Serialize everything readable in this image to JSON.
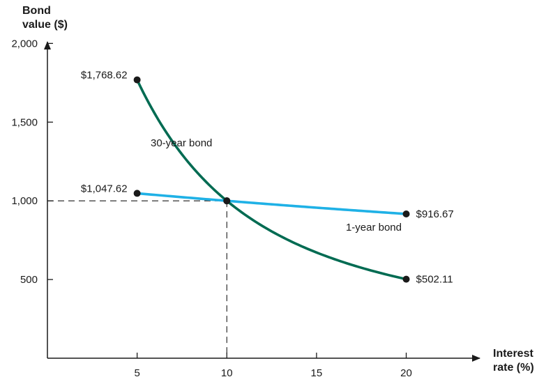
{
  "colors": {
    "axis": "#1a1a1a",
    "series_30yr": "#006b52",
    "series_1yr": "#1fb1e6",
    "point": "#1a1a1a"
  },
  "chart_data": {
    "type": "line",
    "ylabel_line1": "Bond",
    "ylabel_line2": "value ($)",
    "xlabel_line1": "Interest",
    "xlabel_line2": "rate (%)",
    "xlim": [
      0,
      24.1
    ],
    "ylim": [
      0,
      2400
    ],
    "x_ticks": [
      5,
      10,
      15,
      20
    ],
    "x_tick_labels": [
      "5",
      "10",
      "15",
      "20"
    ],
    "y_ticks": [
      500,
      1000,
      1500,
      2000
    ],
    "y_tick_labels": [
      "500",
      "1,000",
      "1,500",
      "2,000"
    ],
    "grid": false,
    "series": [
      {
        "name": "30-year bond",
        "kind": "30-year",
        "x_range": [
          5,
          20
        ],
        "marked_points": [
          {
            "x": 5,
            "y": 1768.62,
            "label": "$1,768.62"
          },
          {
            "x": 10,
            "y": 1000
          },
          {
            "x": 20,
            "y": 502.11,
            "label": "$502.11"
          }
        ]
      },
      {
        "name": "1-year bond",
        "kind": "1-year",
        "x_range": [
          5,
          20
        ],
        "marked_points": [
          {
            "x": 5,
            "y": 1047.62,
            "label": "$1,047.62"
          },
          {
            "x": 10,
            "y": 1000
          },
          {
            "x": 20,
            "y": 916.67,
            "label": "$916.67"
          }
        ]
      }
    ],
    "reference": {
      "x": 10,
      "y": 1000
    }
  }
}
